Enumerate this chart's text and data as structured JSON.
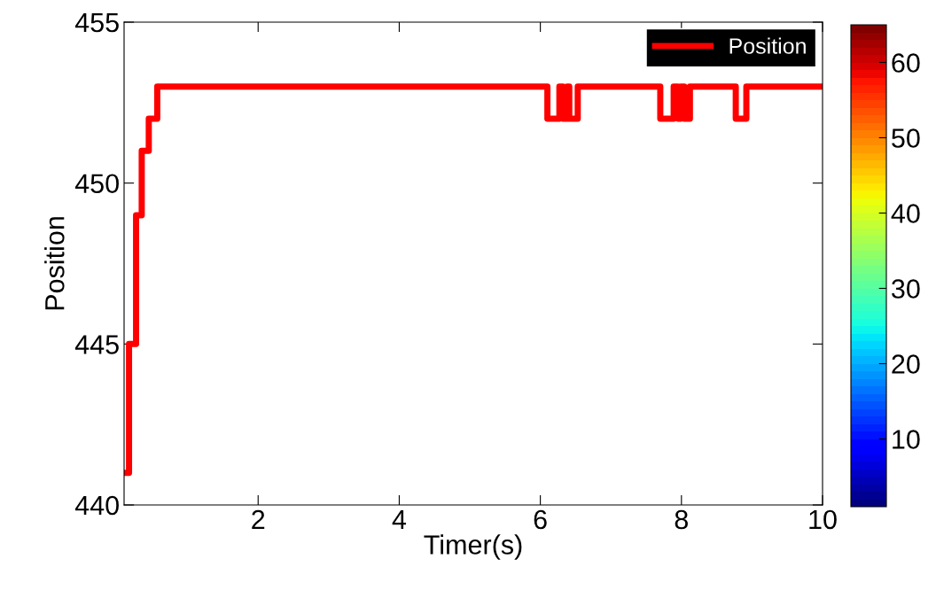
{
  "chart_data": {
    "type": "step",
    "xlabel": "Timer(s)",
    "ylabel": "Position",
    "series": [
      {
        "name": "Position",
        "color": "#ff0000",
        "x": [
          0.1,
          0.17,
          0.27,
          0.35,
          0.45,
          0.57,
          6.1,
          6.27,
          6.32,
          6.38,
          6.41,
          6.53,
          7.7,
          7.89,
          7.95,
          7.99,
          8.04,
          8.12,
          8.77,
          8.92,
          10
        ],
        "values": [
          441,
          445,
          449,
          451,
          452,
          453,
          452,
          453,
          452,
          453,
          452,
          453,
          452,
          453,
          452,
          453,
          452,
          453,
          452,
          453,
          453
        ]
      }
    ],
    "xlim": [
      0.1,
      10
    ],
    "ylim": [
      440,
      455
    ],
    "xticks": [
      2,
      4,
      6,
      8,
      10
    ],
    "yticks": [
      440,
      445,
      450,
      455
    ],
    "clim": [
      1,
      65
    ],
    "cticks": [
      10,
      20,
      30,
      40,
      50,
      60
    ],
    "legend": "top right",
    "grid": false
  }
}
